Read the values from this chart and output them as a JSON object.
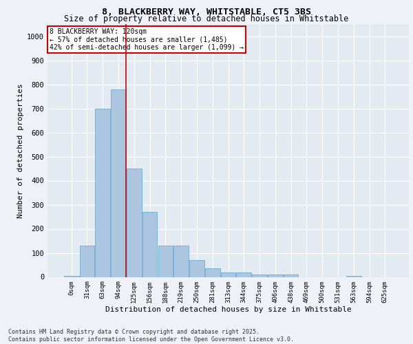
{
  "title_line1": "8, BLACKBERRY WAY, WHITSTABLE, CT5 3BS",
  "title_line2": "Size of property relative to detached houses in Whitstable",
  "xlabel": "Distribution of detached houses by size in Whitstable",
  "ylabel": "Number of detached properties",
  "categories": [
    "0sqm",
    "31sqm",
    "63sqm",
    "94sqm",
    "125sqm",
    "156sqm",
    "188sqm",
    "219sqm",
    "250sqm",
    "281sqm",
    "313sqm",
    "344sqm",
    "375sqm",
    "406sqm",
    "438sqm",
    "469sqm",
    "500sqm",
    "531sqm",
    "563sqm",
    "594sqm",
    "625sqm"
  ],
  "values": [
    5,
    130,
    700,
    780,
    450,
    270,
    130,
    130,
    70,
    35,
    20,
    20,
    10,
    10,
    10,
    0,
    0,
    0,
    5,
    0,
    0
  ],
  "bar_color": "#adc6e0",
  "bar_edge_color": "#6aaad4",
  "vline_x_idx": 3.5,
  "vline_color": "#cc0000",
  "annotation_line1": "8 BLACKBERRY WAY: 120sqm",
  "annotation_line2": "← 57% of detached houses are smaller (1,485)",
  "annotation_line3": "42% of semi-detached houses are larger (1,099) →",
  "annotation_box_color": "#cc0000",
  "bg_color": "#eef2f7",
  "plot_bg_color": "#e4eaf2",
  "grid_color": "#ffffff",
  "ylim": [
    0,
    1050
  ],
  "yticks": [
    0,
    100,
    200,
    300,
    400,
    500,
    600,
    700,
    800,
    900,
    1000
  ],
  "footer_line1": "Contains HM Land Registry data © Crown copyright and database right 2025.",
  "footer_line2": "Contains public sector information licensed under the Open Government Licence v3.0."
}
